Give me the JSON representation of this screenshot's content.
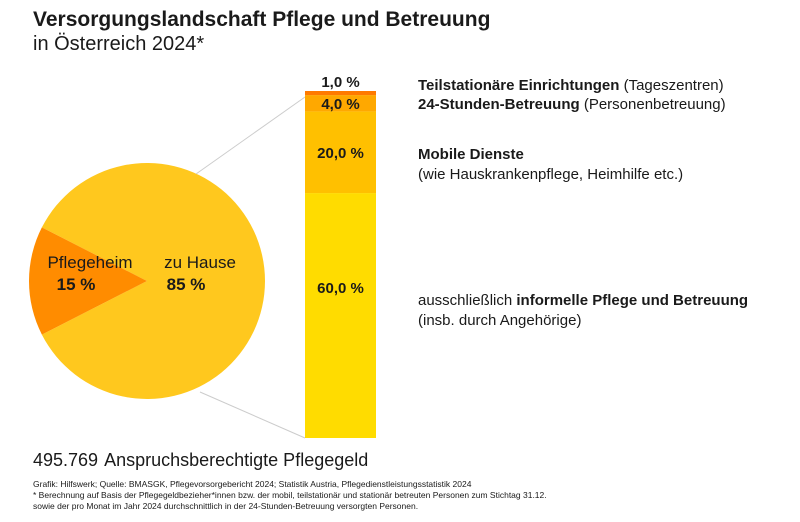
{
  "header": {
    "title": "Versorgungslandschaft Pflege und Betreuung",
    "subtitle": "in Österreich 2024*"
  },
  "chart_data": [
    {
      "type": "pie",
      "labels": [
        "zu Hause",
        "Pflegeheim"
      ],
      "values": [
        85,
        15
      ],
      "value_labels": [
        "85 %",
        "15 %"
      ],
      "colors": [
        "#FFC81E",
        "#FF8C00"
      ]
    },
    {
      "type": "bar",
      "stacked": true,
      "note": "Aufgliederung von 'zu Hause' (85 %)",
      "categories": [
        "ausschließlich informelle Pflege und Betreuung",
        "Mobile Dienste",
        "24-Stunden-Betreuung",
        "Teilstationäre Einrichtungen"
      ],
      "values": [
        60.0,
        20.0,
        4.0,
        1.0
      ],
      "value_labels": [
        "60,0 %",
        "20,0 %",
        "4,0 %",
        "1,0 %"
      ],
      "colors": [
        "#FFDC00",
        "#FFC000",
        "#FFA800",
        "#FF7A00"
      ]
    }
  ],
  "legend": {
    "teil": {
      "bold": "Teilstationäre Einrichtungen",
      "rest": " (Tageszentren)"
    },
    "h24": {
      "bold": "24-Stunden-Betreuung",
      "rest": " (Personenbetreuung)"
    },
    "mobile": {
      "bold": "Mobile Dienste",
      "line2": "(wie Hauskrankenpflege, Heimhilfe etc.)"
    },
    "informal": {
      "pre": "ausschließlich ",
      "bold": "informelle Pflege und Betreuung",
      "line2": "(insb. durch Angehörige)"
    }
  },
  "footer": {
    "total_value": "495.769",
    "total_label": "Anspruchsberechtigte Pflegegeld",
    "source": "Grafik: Hilfswerk; Quelle: BMASGK, Pflegevorsorgebericht 2024; Statistik Austria, Pflegedienstleistungsstatistik 2024",
    "note1": "* Berechnung auf Basis der Pflegegeldbezieher*innen bzw. der mobil, teilstationär und stationär betreuten Personen zum Stichtag 31.12.",
    "note2": "  sowie der pro Monat im Jahr 2024 durchschnittlich in der 24-Stunden-Betreuung versorgten Personen."
  }
}
